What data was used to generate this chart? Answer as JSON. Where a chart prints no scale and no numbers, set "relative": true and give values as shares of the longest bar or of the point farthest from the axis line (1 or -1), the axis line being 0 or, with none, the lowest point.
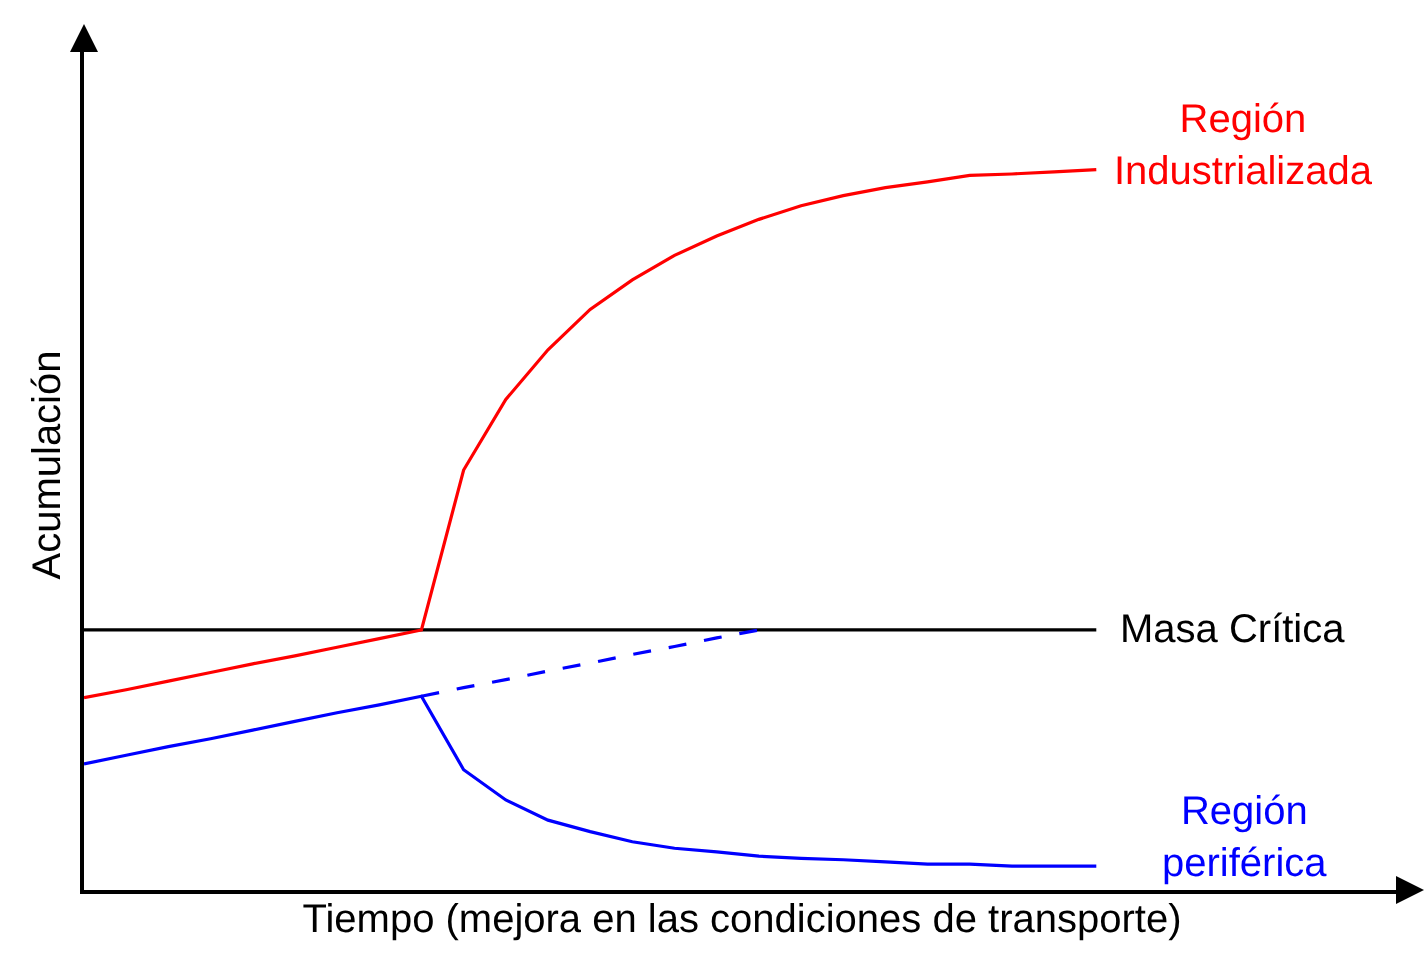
{
  "chart_data": {
    "type": "line",
    "relative": true,
    "xlabel": "Tiempo (mejora en las condiciones de transporte)",
    "ylabel": "Acumulación",
    "legend": false,
    "grid": false,
    "marker": "none",
    "tick_labels": false,
    "categories": [
      null,
      null,
      null,
      null,
      null,
      null,
      null,
      null,
      null,
      null,
      null,
      null,
      null,
      null,
      null,
      null,
      null,
      null,
      null,
      null,
      null,
      null,
      null,
      null,
      null
    ],
    "series": [
      {
        "name": "Masa Crítica",
        "color": "#000000",
        "values": [
          0.361,
          0.361,
          0.361,
          0.361,
          0.361,
          0.361,
          0.361,
          0.361,
          0.361,
          0.361,
          0.361,
          0.361,
          0.361,
          0.361,
          0.361,
          0.361,
          0.361,
          0.361,
          0.361,
          0.361,
          0.361,
          0.361,
          0.361,
          0.361,
          0.361
        ]
      },
      {
        "name": "Región Industrializada",
        "color": "#ff0000",
        "values": [
          0.267,
          0.278,
          0.29,
          0.302,
          0.314,
          0.325,
          0.337,
          0.349,
          0.361,
          0.583,
          0.681,
          0.75,
          0.806,
          0.847,
          0.881,
          0.908,
          0.931,
          0.95,
          0.964,
          0.975,
          0.983,
          0.992,
          0.994,
          0.997,
          1.0
        ]
      },
      {
        "name": "Región periférica",
        "color": "#0000ff",
        "values": [
          0.175,
          0.187,
          0.199,
          0.21,
          0.222,
          0.234,
          0.246,
          0.257,
          0.269,
          0.167,
          0.125,
          0.097,
          0.081,
          0.067,
          0.058,
          0.053,
          0.047,
          0.044,
          0.042,
          0.039,
          0.036,
          0.036,
          0.033,
          0.033,
          0.033
        ]
      },
      {
        "color": "#0000ff",
        "line_style": "dashed",
        "values": [
          null,
          null,
          null,
          null,
          null,
          null,
          null,
          null,
          0.269,
          0.281,
          0.292,
          0.304,
          0.315,
          0.327,
          0.338,
          0.35,
          0.361,
          null,
          null,
          null,
          null,
          null,
          null,
          null,
          null
        ]
      }
    ]
  }
}
